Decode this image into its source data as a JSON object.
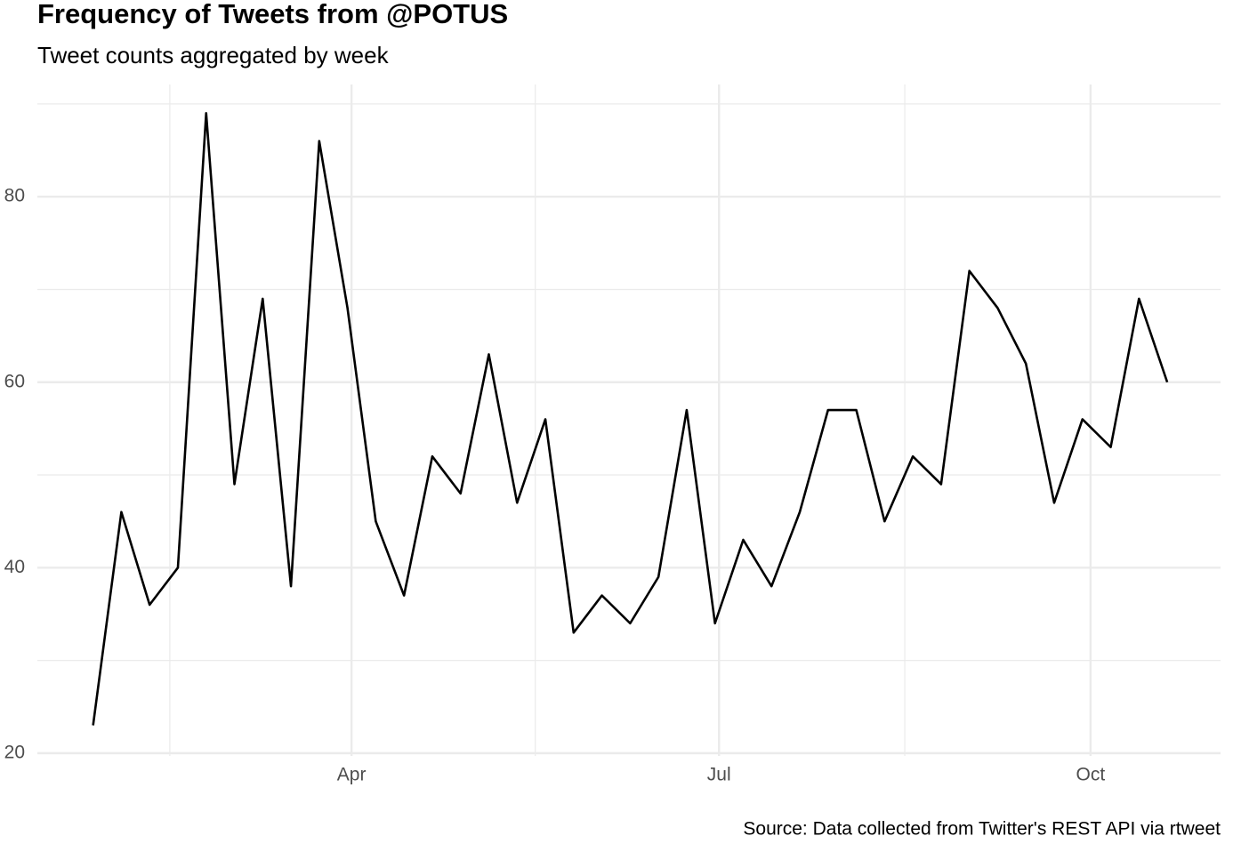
{
  "chart_data": {
    "type": "line",
    "title": "Frequency of Tweets from @POTUS",
    "subtitle": "Tweet counts aggregated by week",
    "caption": "Source: Data collected from Twitter's REST API via rtweet",
    "x": [
      27,
      34,
      41,
      48,
      55,
      62,
      69,
      76,
      83,
      90,
      97,
      104,
      111,
      118,
      125,
      132,
      139,
      146,
      153,
      160,
      167,
      174,
      181,
      188,
      195,
      202,
      209,
      216,
      223,
      230,
      237,
      244,
      251,
      258,
      265,
      272,
      279,
      286,
      293
    ],
    "series": [
      {
        "name": "Tweets",
        "color": "#000000",
        "values": [
          23,
          46,
          36,
          40,
          89,
          49,
          69,
          38,
          86,
          68,
          45,
          37,
          52,
          48,
          63,
          47,
          56,
          33,
          37,
          34,
          39,
          57,
          34,
          43,
          38,
          46,
          57,
          57,
          45,
          52,
          49,
          72,
          68,
          62,
          47,
          56,
          53,
          69,
          60
        ]
      }
    ],
    "xlim": [
      13.2,
      306.2
    ],
    "xticks": [
      {
        "value": 91,
        "label": "Apr"
      },
      {
        "value": 182,
        "label": "Jul"
      },
      {
        "value": 274,
        "label": "Oct"
      }
    ],
    "xminor": [
      46,
      136.5,
      228
    ],
    "ylim": [
      19.7,
      92.1
    ],
    "yticks": [
      20,
      40,
      60,
      80
    ],
    "yminor": [
      30,
      50,
      70,
      90
    ],
    "grid": true
  }
}
